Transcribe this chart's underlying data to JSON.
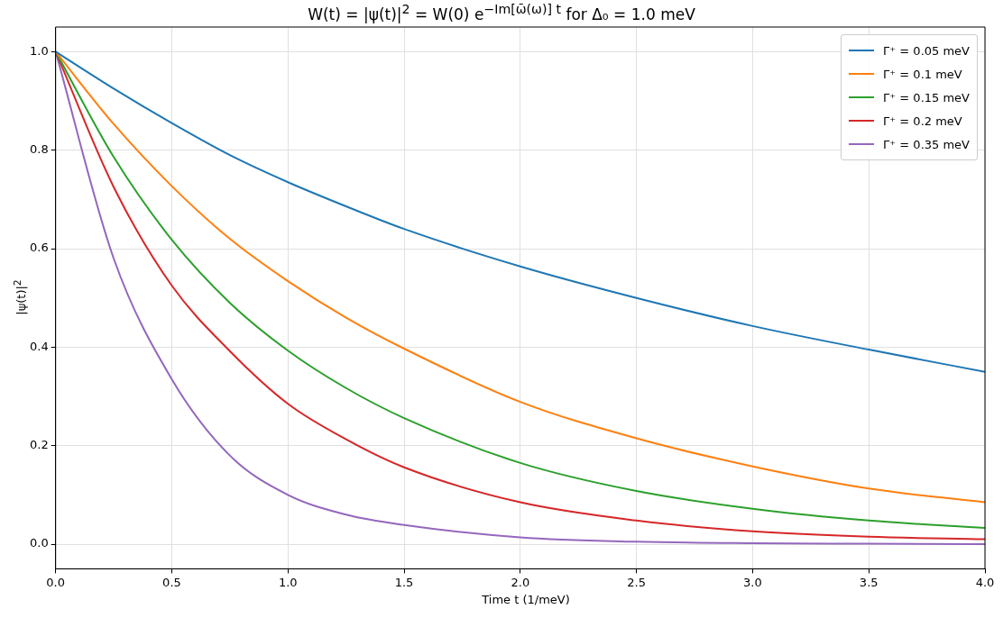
{
  "chart_data": {
    "type": "line",
    "title": "W(t) = |ψ(t)|$^{2}$ = W(0) e$^{−Im[ω̄(ω)] t}$ for Δ₀ = 1.0 meV",
    "xlabel": "Time t (1/meV)",
    "ylabel": "|ψ(t)|$^{2}$",
    "x": [
      0,
      0.25,
      0.5,
      0.75,
      1,
      1.25,
      1.5,
      2,
      2.5,
      3,
      3.5,
      4
    ],
    "series": [
      {
        "name": "Γ⁺ = 0.05 meV",
        "color": "#1f77b4",
        "values": [
          1,
          0.925,
          0.855,
          0.79,
          0.735,
          0.686,
          0.64,
          0.564,
          0.5,
          0.443,
          0.395,
          0.35
        ]
      },
      {
        "name": "Γ⁺ = 0.1 meV",
        "color": "#ff7f0e",
        "values": [
          1,
          0.853,
          0.727,
          0.62,
          0.534,
          0.46,
          0.397,
          0.289,
          0.215,
          0.158,
          0.113,
          0.085
        ]
      },
      {
        "name": "Γ⁺ = 0.15 meV",
        "color": "#2ca02c",
        "values": [
          1,
          0.786,
          0.618,
          0.49,
          0.393,
          0.317,
          0.256,
          0.165,
          0.108,
          0.072,
          0.048,
          0.033
        ]
      },
      {
        "name": "Γ⁺ = 0.2 meV",
        "color": "#d62728",
        "values": [
          1,
          0.725,
          0.525,
          0.392,
          0.285,
          0.213,
          0.156,
          0.085,
          0.048,
          0.026,
          0.015,
          0.01
        ]
      },
      {
        "name": "Γ⁺ = 0.35 meV",
        "color": "#9467bd",
        "values": [
          1,
          0.58,
          0.335,
          0.18,
          0.1,
          0.06,
          0.039,
          0.014,
          0.005,
          0.002,
          0.001,
          0
        ]
      }
    ],
    "xlim": [
      0,
      4
    ],
    "xticks": [
      {
        "value": 0,
        "label": "0.0"
      },
      0.5,
      {
        "value": 1,
        "label": "1.0"
      },
      1.5,
      {
        "value": 2,
        "label": "2.0"
      },
      2.5,
      {
        "value": 3,
        "label": "3.0"
      },
      3.5,
      {
        "value": 4,
        "label": "4.0"
      }
    ],
    "ylim": [
      -0.05,
      1.05
    ],
    "yticks": [
      {
        "value": 0,
        "label": "0.0"
      },
      0.2,
      0.4,
      0.6,
      0.8,
      {
        "value": 1,
        "label": "1.0"
      }
    ],
    "grid": true,
    "legend": "top right",
    "marker": "none",
    "line_style": "solid"
  }
}
